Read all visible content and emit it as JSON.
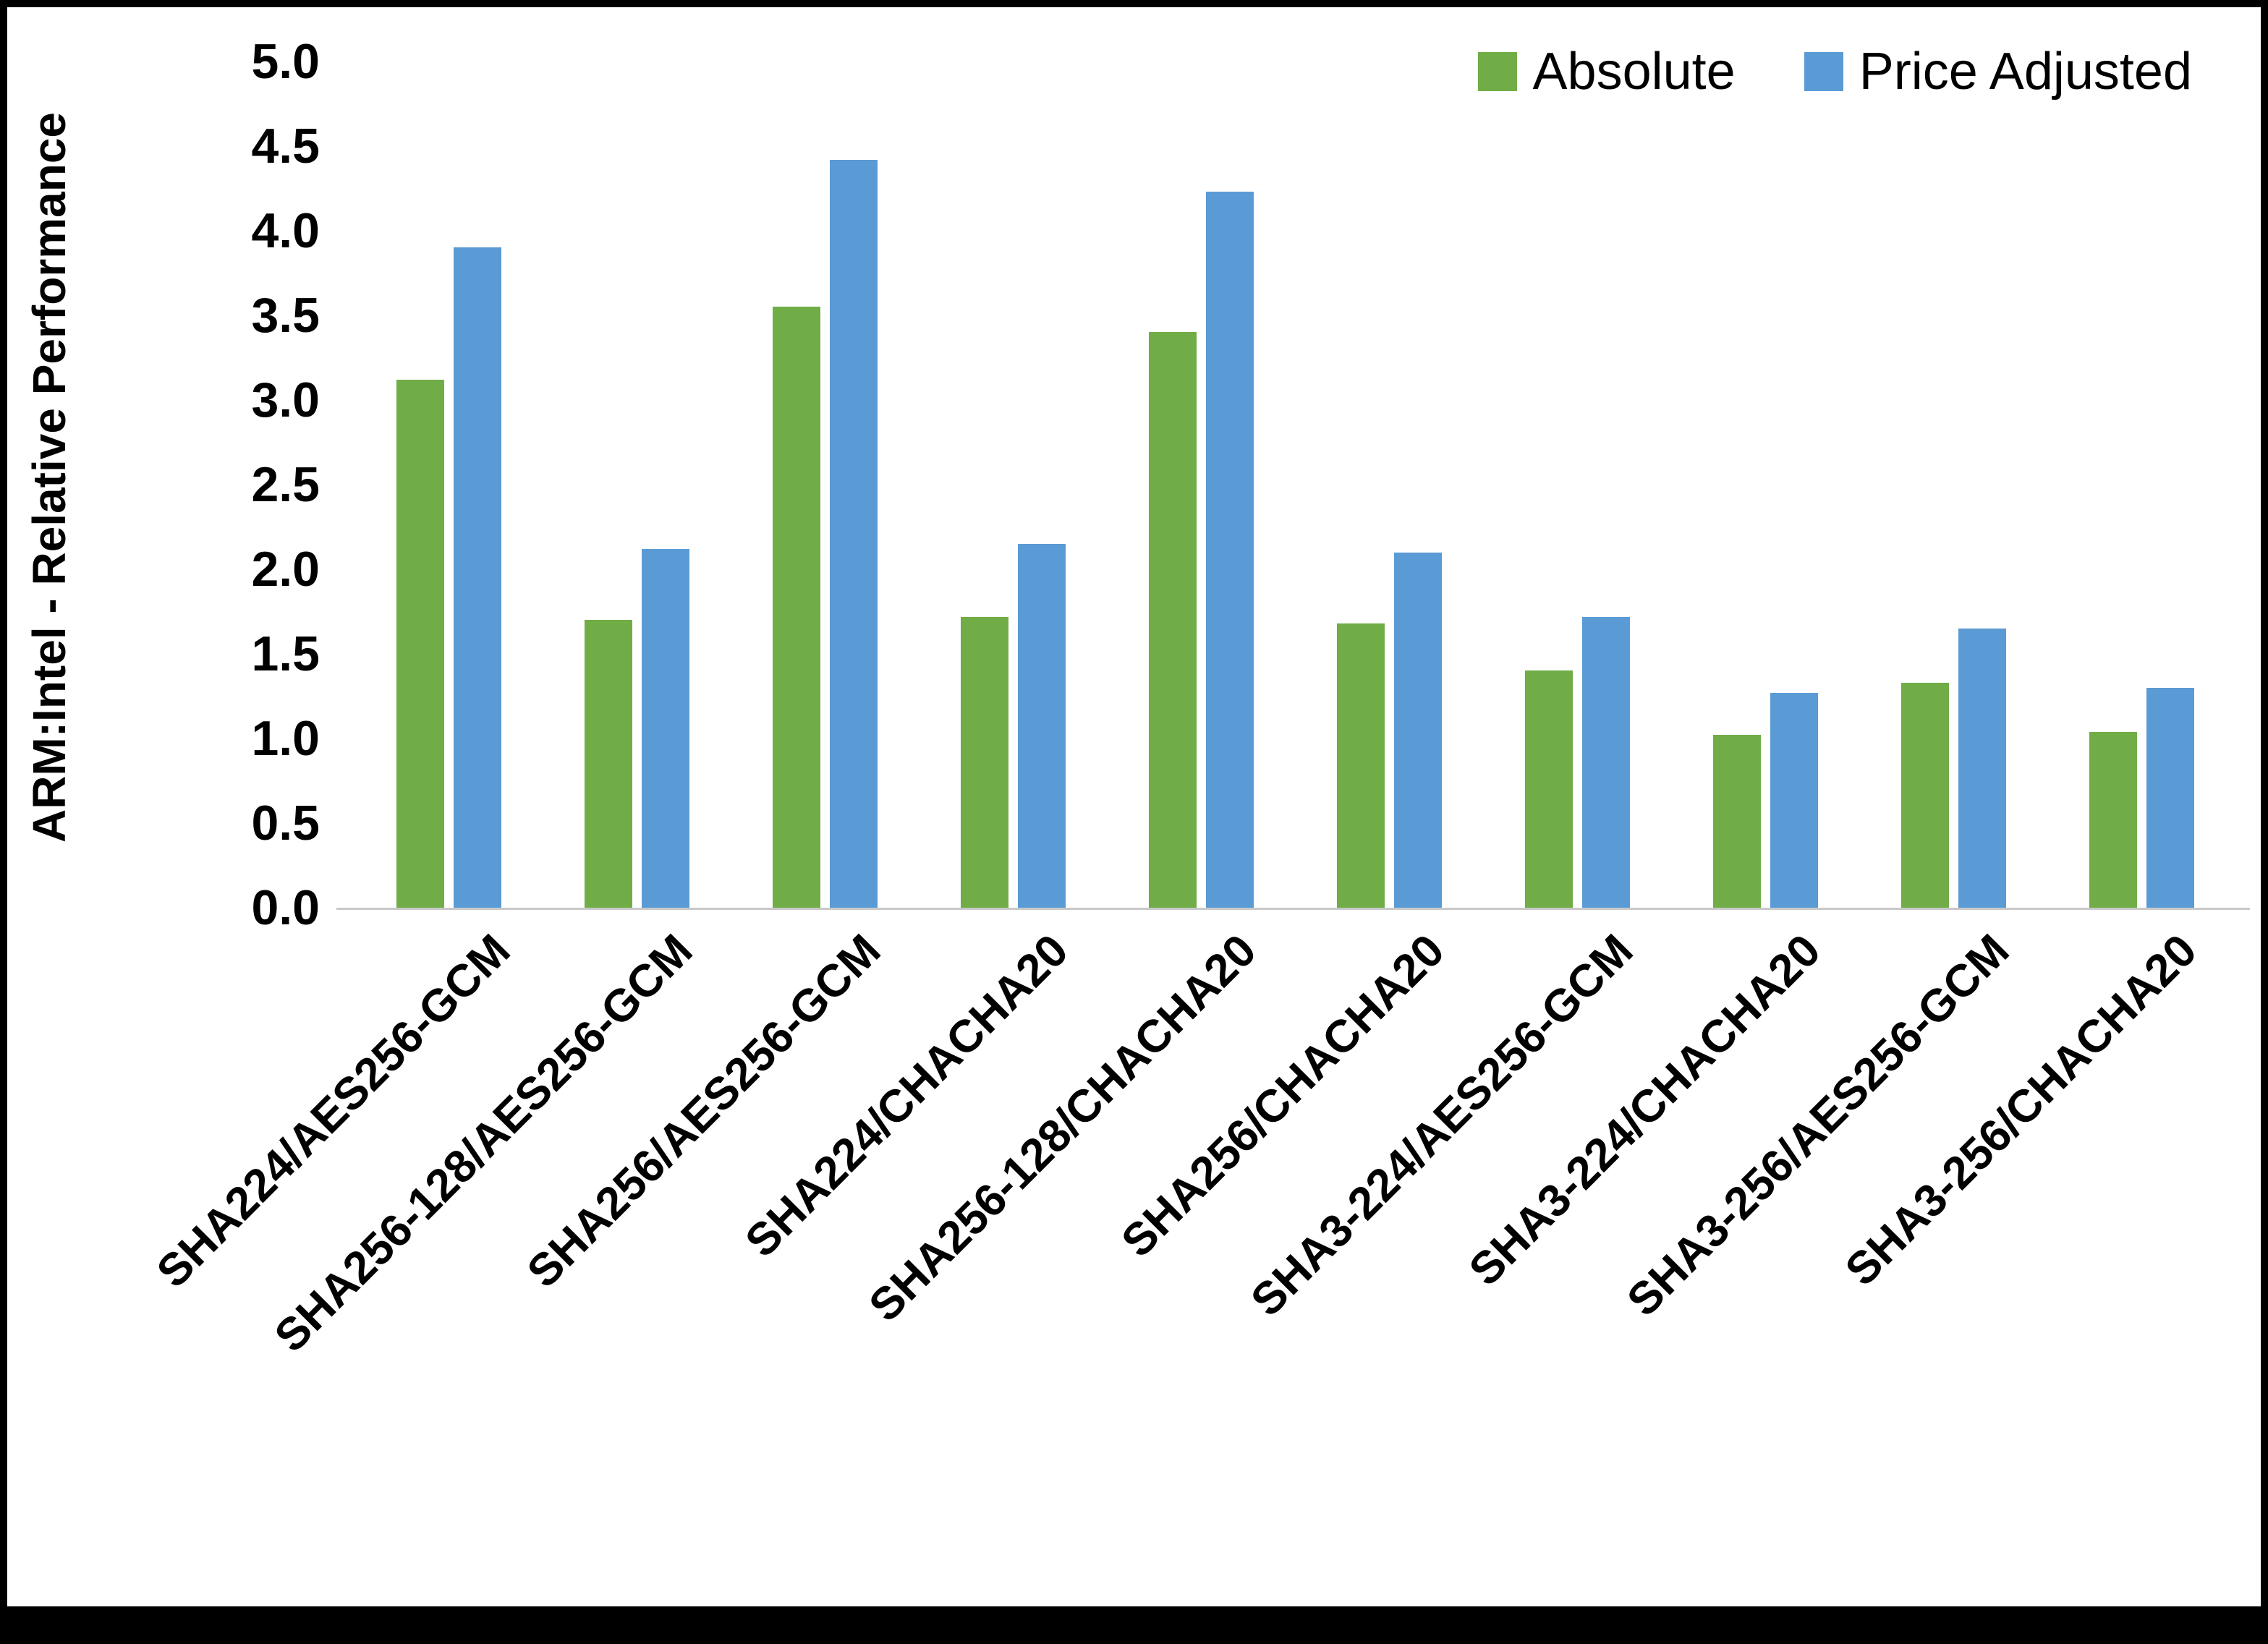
{
  "chart_data": {
    "type": "bar",
    "title": "",
    "xlabel": "",
    "ylabel": "ARM:Intel - Relative Performance",
    "ylim": [
      0,
      5
    ],
    "ytick_step": 0.5,
    "yticks": [
      "0.0",
      "0.5",
      "1.0",
      "1.5",
      "2.0",
      "2.5",
      "3.0",
      "3.5",
      "4.0",
      "4.5",
      "5.0"
    ],
    "grid": false,
    "legend_position": "top-right",
    "categories": [
      "SHA224/AES256-GCM",
      "SHA256-128/AES256-GCM",
      "SHA256/AES256-GCM",
      "SHA224/CHACHA20",
      "SHA256-128/CHACHA20",
      "SHA256/CHACHA20",
      "SHA3-224/AES256-GCM",
      "SHA3-224/CHACHA20",
      "SHA3-256/AES256-GCM",
      "SHA3-256/CHACHA20"
    ],
    "series": [
      {
        "name": "Absolute",
        "color": "#70AD47",
        "values": [
          3.12,
          1.7,
          3.55,
          1.72,
          3.4,
          1.68,
          1.4,
          1.02,
          1.33,
          1.04
        ]
      },
      {
        "name": "Price Adjusted",
        "color": "#5B9BD5",
        "values": [
          3.9,
          2.12,
          4.42,
          2.15,
          4.23,
          2.1,
          1.72,
          1.27,
          1.65,
          1.3
        ]
      }
    ]
  }
}
